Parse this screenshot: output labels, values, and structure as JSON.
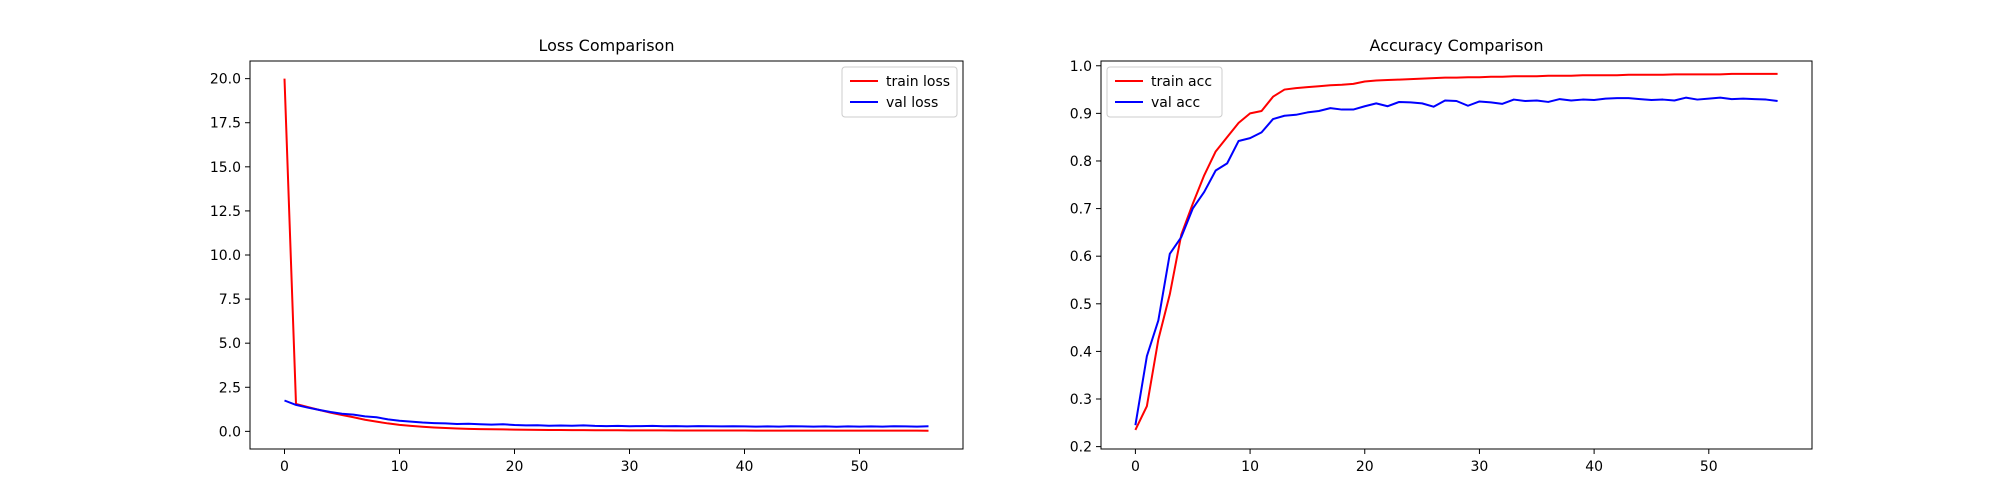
{
  "chart_data": [
    {
      "type": "line",
      "title": "Loss Comparison",
      "xlabel": "",
      "ylabel": "",
      "xlim": [
        -3,
        59
      ],
      "ylim": [
        -1,
        21
      ],
      "xticks": [
        0,
        10,
        20,
        30,
        40,
        50
      ],
      "yticks": [
        0.0,
        2.5,
        5.0,
        7.5,
        10.0,
        12.5,
        15.0,
        17.5,
        20.0
      ],
      "ytick_labels": [
        "0.0",
        "2.5",
        "5.0",
        "7.5",
        "10.0",
        "12.5",
        "15.0",
        "17.5",
        "20.0"
      ],
      "legend_position": "upper right",
      "x": [
        0,
        1,
        2,
        3,
        4,
        5,
        6,
        7,
        8,
        9,
        10,
        11,
        12,
        13,
        14,
        15,
        16,
        17,
        18,
        19,
        20,
        21,
        22,
        23,
        24,
        25,
        26,
        27,
        28,
        29,
        30,
        31,
        32,
        33,
        34,
        35,
        36,
        37,
        38,
        39,
        40,
        41,
        42,
        43,
        44,
        45,
        46,
        47,
        48,
        49,
        50,
        51,
        52,
        53,
        54,
        55,
        56
      ],
      "series": [
        {
          "name": "train loss",
          "color": "#ff0000",
          "values": [
            20.0,
            1.55,
            1.38,
            1.22,
            1.06,
            0.93,
            0.8,
            0.66,
            0.55,
            0.45,
            0.37,
            0.31,
            0.26,
            0.22,
            0.19,
            0.16,
            0.14,
            0.13,
            0.12,
            0.11,
            0.1,
            0.09,
            0.085,
            0.08,
            0.075,
            0.07,
            0.068,
            0.065,
            0.062,
            0.06,
            0.058,
            0.056,
            0.055,
            0.053,
            0.052,
            0.051,
            0.05,
            0.049,
            0.048,
            0.047,
            0.046,
            0.045,
            0.045,
            0.044,
            0.043,
            0.043,
            0.042,
            0.042,
            0.041,
            0.041,
            0.04,
            0.04,
            0.04,
            0.039,
            0.039,
            0.039,
            0.038
          ]
        },
        {
          "name": "val loss",
          "color": "#0000ff",
          "values": [
            1.75,
            1.5,
            1.35,
            1.22,
            1.1,
            1.0,
            0.95,
            0.85,
            0.8,
            0.68,
            0.6,
            0.55,
            0.5,
            0.47,
            0.45,
            0.42,
            0.43,
            0.4,
            0.38,
            0.4,
            0.36,
            0.34,
            0.35,
            0.32,
            0.33,
            0.32,
            0.34,
            0.31,
            0.3,
            0.31,
            0.29,
            0.3,
            0.31,
            0.29,
            0.3,
            0.28,
            0.3,
            0.29,
            0.28,
            0.29,
            0.28,
            0.27,
            0.28,
            0.27,
            0.29,
            0.28,
            0.27,
            0.28,
            0.26,
            0.28,
            0.27,
            0.28,
            0.27,
            0.29,
            0.28,
            0.27,
            0.29
          ]
        }
      ]
    },
    {
      "type": "line",
      "title": "Accuracy Comparison",
      "xlabel": "",
      "ylabel": "",
      "xlim": [
        -3,
        59
      ],
      "ylim": [
        0.195,
        1.01
      ],
      "xticks": [
        0,
        10,
        20,
        30,
        40,
        50
      ],
      "yticks": [
        0.2,
        0.3,
        0.4,
        0.5,
        0.6,
        0.7,
        0.8,
        0.9,
        1.0
      ],
      "ytick_labels": [
        "0.2",
        "0.3",
        "0.4",
        "0.5",
        "0.6",
        "0.7",
        "0.8",
        "0.9",
        "1.0"
      ],
      "legend_position": "upper left",
      "x": [
        0,
        1,
        2,
        3,
        4,
        5,
        6,
        7,
        8,
        9,
        10,
        11,
        12,
        13,
        14,
        15,
        16,
        17,
        18,
        19,
        20,
        21,
        22,
        23,
        24,
        25,
        26,
        27,
        28,
        29,
        30,
        31,
        32,
        33,
        34,
        35,
        36,
        37,
        38,
        39,
        40,
        41,
        42,
        43,
        44,
        45,
        46,
        47,
        48,
        49,
        50,
        51,
        52,
        53,
        54,
        55,
        56
      ],
      "series": [
        {
          "name": "train acc",
          "color": "#ff0000",
          "values": [
            0.235,
            0.285,
            0.425,
            0.52,
            0.645,
            0.71,
            0.77,
            0.82,
            0.85,
            0.88,
            0.9,
            0.905,
            0.935,
            0.95,
            0.953,
            0.955,
            0.957,
            0.959,
            0.96,
            0.962,
            0.967,
            0.969,
            0.97,
            0.971,
            0.972,
            0.973,
            0.974,
            0.975,
            0.975,
            0.976,
            0.976,
            0.977,
            0.977,
            0.978,
            0.978,
            0.978,
            0.979,
            0.979,
            0.979,
            0.98,
            0.98,
            0.98,
            0.98,
            0.981,
            0.981,
            0.981,
            0.981,
            0.982,
            0.982,
            0.982,
            0.982,
            0.982,
            0.983,
            0.983,
            0.983,
            0.983,
            0.983
          ]
        },
        {
          "name": "val acc",
          "color": "#0000ff",
          "values": [
            0.245,
            0.39,
            0.465,
            0.605,
            0.64,
            0.7,
            0.735,
            0.78,
            0.795,
            0.842,
            0.848,
            0.86,
            0.888,
            0.895,
            0.897,
            0.902,
            0.905,
            0.911,
            0.908,
            0.908,
            0.915,
            0.921,
            0.915,
            0.924,
            0.923,
            0.921,
            0.914,
            0.927,
            0.926,
            0.916,
            0.925,
            0.923,
            0.92,
            0.929,
            0.926,
            0.927,
            0.924,
            0.93,
            0.927,
            0.929,
            0.928,
            0.931,
            0.932,
            0.932,
            0.93,
            0.928,
            0.929,
            0.927,
            0.933,
            0.929,
            0.931,
            0.933,
            0.93,
            0.931,
            0.93,
            0.929,
            0.926
          ]
        }
      ]
    }
  ]
}
